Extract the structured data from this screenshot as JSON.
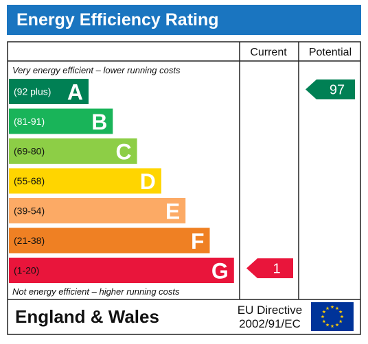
{
  "title": "Energy Efficiency Rating",
  "columns": {
    "current": "Current",
    "potential": "Potential"
  },
  "notes": {
    "top": "Very energy efficient – lower running costs",
    "bottom": "Not energy efficient – higher running costs"
  },
  "footer": {
    "country": "England & Wales",
    "directive_line1": "EU Directive",
    "directive_line2": "2002/91/EC"
  },
  "chart_data": {
    "type": "bar",
    "categories": [
      "A",
      "B",
      "C",
      "D",
      "E",
      "F",
      "G"
    ],
    "bands": [
      {
        "letter": "A",
        "range": "(92 plus)",
        "color": "#008054",
        "text_color": "#ffffff"
      },
      {
        "letter": "B",
        "range": "(81-91)",
        "color": "#19b459",
        "text_color": "#ffffff"
      },
      {
        "letter": "C",
        "range": "(69-80)",
        "color": "#8dce46",
        "text_color": "#111111"
      },
      {
        "letter": "D",
        "range": "(55-68)",
        "color": "#ffd500",
        "text_color": "#111111"
      },
      {
        "letter": "E",
        "range": "(39-54)",
        "color": "#fcaa65",
        "text_color": "#111111"
      },
      {
        "letter": "F",
        "range": "(21-38)",
        "color": "#ef8023",
        "text_color": "#111111"
      },
      {
        "letter": "G",
        "range": "(1-20)",
        "color": "#e9153b",
        "text_color": "#111111"
      }
    ],
    "current": {
      "value": 1,
      "band": "G",
      "color": "#e9153b"
    },
    "potential": {
      "value": 97,
      "band": "A",
      "color": "#008054"
    }
  },
  "colors": {
    "title_bar": "#1a75c0",
    "eu_flag": "#003399",
    "eu_stars": "#ffcc00"
  }
}
